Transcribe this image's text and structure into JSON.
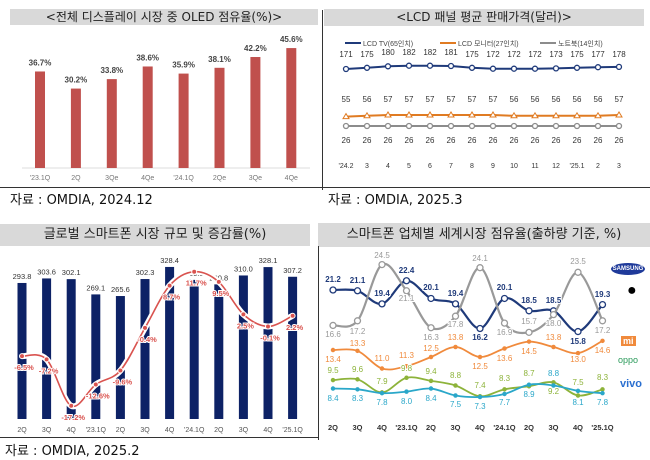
{
  "chart_data": [
    {
      "type": "bar",
      "title": "<전체 디스플레이 시장 중 OLED 점유율(%)>",
      "categories": [
        "'23.1Q",
        "2Q",
        "3Qe",
        "4Qe",
        "'24.1Q",
        "2Qe",
        "3Qe",
        "4Qe"
      ],
      "values": [
        36.7,
        30.2,
        33.8,
        38.6,
        35.9,
        38.1,
        42.2,
        45.6
      ],
      "data_labels": [
        "36.7%",
        "30.2%",
        "33.8%",
        "38.6%",
        "35.9%",
        "38.1%",
        "42.2%",
        "45.6%"
      ],
      "color": "#c0504d",
      "source": "자료 : OMDIA, 2024.12"
    },
    {
      "type": "line",
      "title": "<LCD 패널 평균 판매가격(달러)>",
      "categories": [
        "'24.2",
        "3",
        "4",
        "5",
        "6",
        "7",
        "8",
        "9",
        "10",
        "11",
        "12",
        "'25.1",
        "2",
        "3"
      ],
      "series": [
        {
          "name": "LCD TV(65인치)",
          "values": [
            171,
            175,
            180,
            182,
            182,
            181,
            175,
            172,
            172,
            172,
            173,
            175,
            177,
            178
          ],
          "color": "#1f3a7a"
        },
        {
          "name": "LCD 모니터(27인치)",
          "values": [
            55,
            56,
            57,
            57,
            57,
            57,
            57,
            57,
            56,
            56,
            56,
            56,
            56,
            57
          ],
          "color": "#e07b22"
        },
        {
          "name": "노트북(14인치)",
          "values": [
            26,
            26,
            26,
            26,
            26,
            26,
            26,
            26,
            26,
            26,
            26,
            26,
            26,
            26
          ],
          "color": "#8c8c8c"
        }
      ],
      "source": "자료 : OMDIA, 2025.3"
    },
    {
      "type": "bar",
      "title": "글로벌 스마트폰 시장 규모 및 증감률(%)",
      "categories": [
        "2Q",
        "3Q",
        "4Q",
        "'23.1Q",
        "2Q",
        "3Q",
        "4Q",
        "'24.1Q",
        "2Q",
        "3Q",
        "4Q",
        "'25.1Q"
      ],
      "series": [
        {
          "type": "bar",
          "values": [
            293.8,
            303.6,
            302.1,
            269.1,
            265.6,
            302.3,
            328.4,
            300.5,
            290.8,
            310.0,
            328.1,
            307.2
          ],
          "labels": [
            "293.8",
            "303.6",
            "302.1",
            "269.1",
            "265.6",
            "302.3",
            "328.4",
            "300.5",
            "290.8",
            "310.0",
            "328.1",
            "307.2"
          ],
          "color": "#0d2266"
        },
        {
          "type": "line",
          "values": [
            -6.5,
            -7.2,
            -17.2,
            -12.6,
            -9.6,
            -0.4,
            8.7,
            11.7,
            9.5,
            2.5,
            -0.1,
            2.2
          ],
          "labels": [
            "-6.5%",
            "-7.2%",
            "-17.2%",
            "-12.6%",
            "-9.6%",
            "-0.4%",
            "8.7%",
            "11.7%",
            "9.5%",
            "2.5%",
            "-0.1%",
            "2.2%"
          ],
          "color": "#d9534f"
        }
      ],
      "source": "자료 : OMDIA, 2025.2"
    },
    {
      "type": "line",
      "title": "스마트폰 업체별 세계시장 점유율(출하량 기준, %)",
      "categories": [
        "2Q",
        "3Q",
        "4Q",
        "'23.1Q",
        "2Q",
        "3Q",
        "4Q",
        "'24.1Q",
        "2Q",
        "3Q",
        "4Q",
        "'25.1Q"
      ],
      "series": [
        {
          "name": "SAMSUNG",
          "values": [
            21.2,
            21.1,
            19.4,
            22.4,
            20.1,
            19.4,
            16.2,
            20.1,
            18.5,
            18.5,
            15.8,
            19.3
          ],
          "color": "#1f3a7a"
        },
        {
          "name": "Apple",
          "values": [
            16.6,
            17.2,
            24.5,
            21.1,
            16.3,
            17.8,
            24.1,
            16.9,
            15.7,
            18.0,
            23.5,
            17.2
          ],
          "color": "#999999"
        },
        {
          "name": "小米",
          "values": [
            13.4,
            13.3,
            11.0,
            11.3,
            12.5,
            13.8,
            12.5,
            13.6,
            14.5,
            13.8,
            13.0,
            14.6
          ],
          "color": "#f08a3c"
        },
        {
          "name": "oppo",
          "values": [
            9.5,
            9.6,
            7.9,
            9.8,
            9.4,
            8.8,
            7.4,
            8.3,
            8.7,
            9.2,
            7.5,
            8.3
          ],
          "color": "#8db33a"
        },
        {
          "name": "vivo",
          "values": [
            8.4,
            8.3,
            7.8,
            8.0,
            8.4,
            7.5,
            7.3,
            7.7,
            8.9,
            8.8,
            8.1,
            7.8
          ],
          "color": "#2aa7c9"
        }
      ]
    }
  ]
}
